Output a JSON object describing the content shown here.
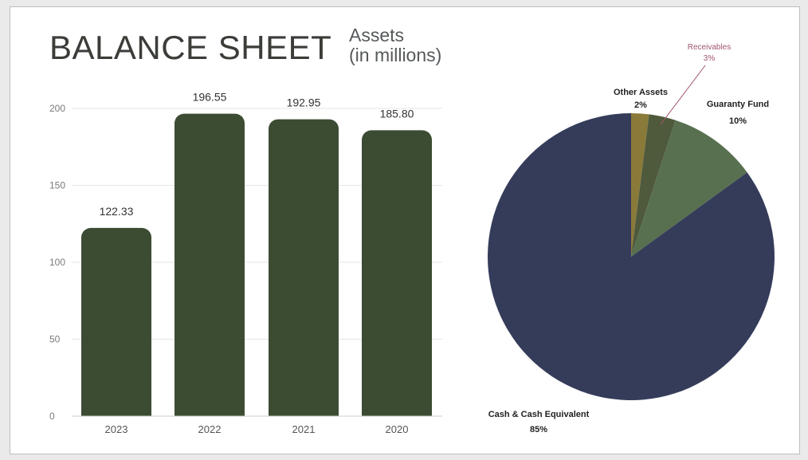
{
  "header": {
    "title": "BALANCE SHEET",
    "subtitle_line1": "Assets",
    "subtitle_line2": "(in millions)"
  },
  "chart_data": [
    {
      "type": "bar",
      "categories": [
        "2023",
        "2022",
        "2021",
        "2020"
      ],
      "values": [
        122.33,
        196.55,
        192.95,
        185.8
      ],
      "data_labels": [
        "122.33",
        "196.55",
        "192.95",
        "185.80"
      ],
      "yticks": [
        "0",
        "50",
        "100",
        "150",
        "200"
      ],
      "ylim": [
        0,
        200
      ],
      "grid": true,
      "color": "#3c4c33"
    },
    {
      "type": "pie",
      "slices": [
        {
          "label": "Other Assets",
          "pct_label": "2%",
          "value": 2,
          "color": "#8a7a3a"
        },
        {
          "label": "Receivables",
          "pct_label": "3%",
          "value": 3,
          "color": "#4f5a3c"
        },
        {
          "label": "Guaranty Fund",
          "pct_label": "10%",
          "value": 10,
          "color": "#58704f"
        },
        {
          "label": "Cash & Cash Equivalent",
          "pct_label": "85%",
          "value": 85,
          "color": "#353c5a"
        }
      ]
    }
  ]
}
